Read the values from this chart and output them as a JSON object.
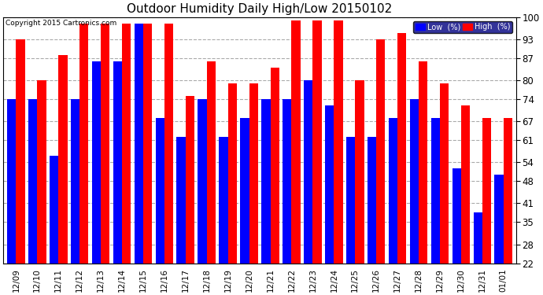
{
  "title": "Outdoor Humidity Daily High/Low 20150102",
  "copyright": "Copyright 2015 Cartronics.com",
  "dates": [
    "12/09",
    "12/10",
    "12/11",
    "12/12",
    "12/13",
    "12/14",
    "12/15",
    "12/16",
    "12/17",
    "12/18",
    "12/19",
    "12/20",
    "12/21",
    "12/22",
    "12/23",
    "12/24",
    "12/25",
    "12/26",
    "12/27",
    "12/28",
    "12/29",
    "12/30",
    "12/31",
    "01/01"
  ],
  "low_values": [
    74,
    74,
    56,
    74,
    86,
    86,
    98,
    68,
    62,
    74,
    62,
    68,
    74,
    74,
    80,
    72,
    62,
    62,
    68,
    74,
    68,
    52,
    38,
    50
  ],
  "high_values": [
    93,
    80,
    88,
    98,
    98,
    98,
    98,
    98,
    75,
    86,
    79,
    79,
    84,
    99,
    99,
    99,
    80,
    93,
    95,
    86,
    79,
    72,
    68,
    68
  ],
  "low_color": "#0000ff",
  "high_color": "#ff0000",
  "bg_color": "#ffffff",
  "plot_bg_color": "#ffffff",
  "grid_color": "#aaaaaa",
  "ylim_min": 22,
  "ylim_max": 100,
  "yticks": [
    22,
    28,
    35,
    41,
    48,
    54,
    61,
    67,
    74,
    80,
    87,
    93,
    100
  ],
  "title_fontsize": 11,
  "legend_low_label": "Low  (%)",
  "legend_high_label": "High  (%)",
  "bar_bottom": 22
}
